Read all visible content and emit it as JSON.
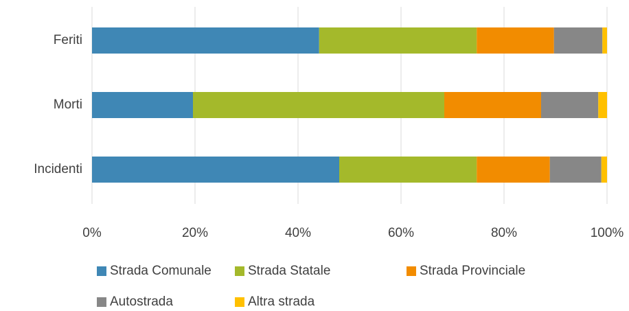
{
  "chart_data": {
    "type": "stacked_barh",
    "categories": [
      "Incidenti",
      "Morti",
      "Feriti"
    ],
    "series": [
      {
        "name": "Strada Comunale",
        "color": "#3f87b5",
        "values": [
          48.0,
          19.6,
          44.1
        ]
      },
      {
        "name": "Strada Statale",
        "color": "#a4b92b",
        "values": [
          26.7,
          48.8,
          30.6
        ]
      },
      {
        "name": "Strada Provinciale",
        "color": "#f28c00",
        "values": [
          14.2,
          18.8,
          15.0
        ]
      },
      {
        "name": "Autostrada",
        "color": "#878787",
        "values": [
          10.0,
          11.1,
          9.4
        ]
      },
      {
        "name": "Altra strada",
        "color": "#ffc000",
        "values": [
          1.1,
          1.7,
          0.9
        ]
      }
    ],
    "xlim": [
      0,
      100
    ],
    "xticks": [
      {
        "value": 0,
        "label": "0%"
      },
      {
        "value": 20,
        "label": "20%"
      },
      {
        "value": 40,
        "label": "40%"
      },
      {
        "value": 60,
        "label": "60%"
      },
      {
        "value": 80,
        "label": "80%"
      },
      {
        "value": 100,
        "label": "100%"
      }
    ],
    "grid": true,
    "legend": "bottom"
  }
}
